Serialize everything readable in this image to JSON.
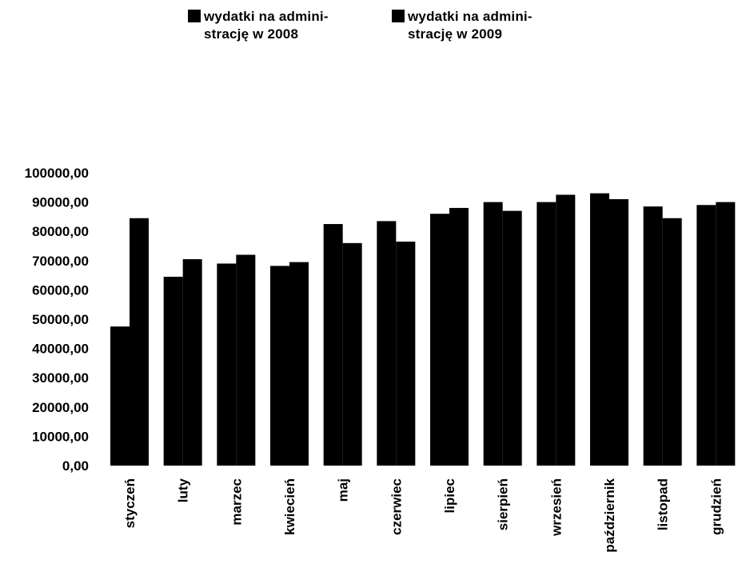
{
  "chart_data": {
    "type": "bar",
    "title": "",
    "xlabel": "",
    "ylabel": "",
    "ylim": [
      0,
      100000
    ],
    "y_ticks": [
      "0,00",
      "10000,00",
      "20000,00",
      "30000,00",
      "40000,00",
      "50000,00",
      "60000,00",
      "70000,00",
      "80000,00",
      "90000,00",
      "100000,00"
    ],
    "y_tick_values": [
      0,
      10000,
      20000,
      30000,
      40000,
      50000,
      60000,
      70000,
      80000,
      90000,
      100000
    ],
    "categories": [
      "styczeń",
      "luty",
      "marzec",
      "kwiecień",
      "maj",
      "czerwiec",
      "lipiec",
      "sierpień",
      "wrzesień",
      "październik",
      "listopad",
      "grudzień"
    ],
    "series": [
      {
        "name": "wydatki na admini-\nstrację w 2008",
        "color": "#000000",
        "values": [
          47500,
          64500,
          69000,
          68200,
          82500,
          83500,
          86000,
          90000,
          90000,
          93000,
          88500,
          89000
        ]
      },
      {
        "name": "wydatki na admini-\nstrację w 2009",
        "color": "#000000",
        "values": [
          84500,
          70500,
          72000,
          69500,
          76000,
          76500,
          88000,
          87000,
          92500,
          91000,
          84500,
          90000
        ]
      }
    ],
    "grid": false,
    "legend_position": "top"
  }
}
